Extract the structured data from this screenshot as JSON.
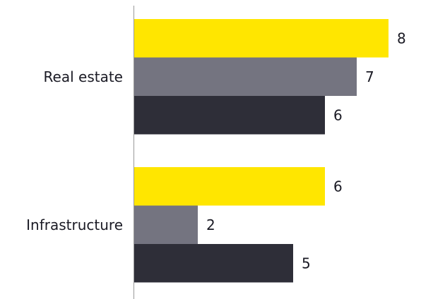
{
  "chart_data": {
    "type": "bar",
    "orientation": "horizontal",
    "categories": [
      "Real estate",
      "Infrastructure"
    ],
    "series": [
      {
        "values": [
          8,
          6
        ],
        "color": "#FFE600"
      },
      {
        "values": [
          7,
          2
        ],
        "color": "#747480"
      },
      {
        "values": [
          6,
          5
        ],
        "color": "#2E2E38"
      }
    ],
    "xlim": [
      0,
      8
    ],
    "grid": false,
    "legend": "none",
    "data_labels": true,
    "axis_line_color": "#999999"
  }
}
